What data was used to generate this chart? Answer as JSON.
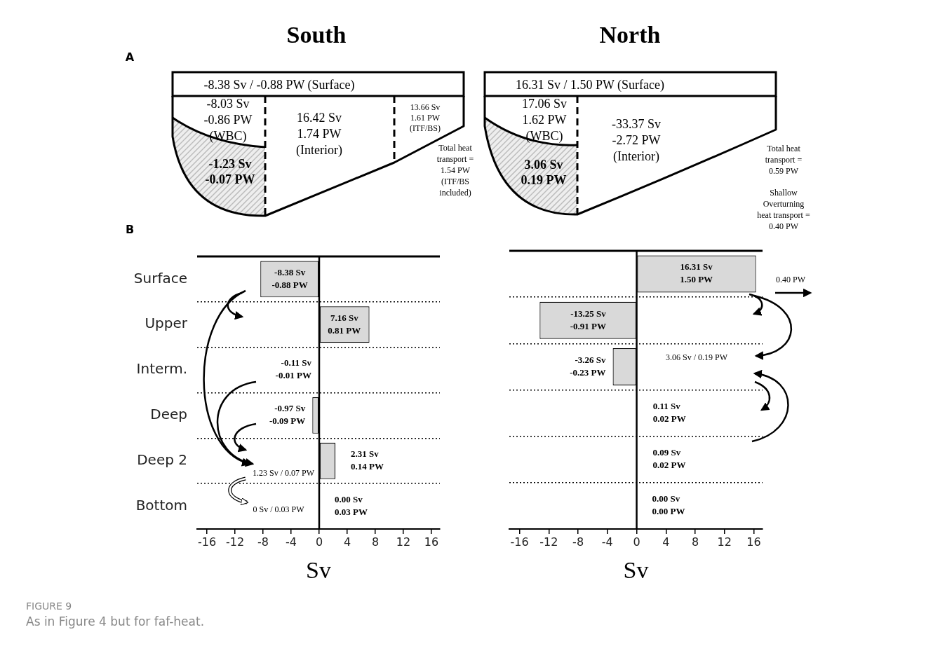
{
  "chart_data": [
    {
      "type": "other",
      "title": "South",
      "annotations": [
        "A",
        "-8.38 Sv / -0.88 PW (Surface)",
        "-8.03 Sv\n-0.86 PW\n(WBC)",
        "16.42 Sv\n1.74 PW\n(Interior)",
        "13.66 Sv\n1.61 PW\n(ITF/BS)",
        "-1.23 Sv\n-0.07 PW",
        "Total heat\ntransport =\n1.54 PW\n(ITF/BS\nincluded)"
      ]
    },
    {
      "type": "other",
      "title": "North",
      "annotations": [
        "16.31 Sv / 1.50 PW (Surface)",
        "17.06 Sv\n1.62 PW\n(WBC)",
        "-33.37 Sv\n-2.72 PW\n(Interior)",
        "3.06 Sv\n0.19 PW",
        "Total heat\ntransport =\n0.59 PW",
        "Shallow\nOverturning\nheat transport =\n0.40 PW"
      ]
    },
    {
      "type": "bar",
      "orientation": "horizontal",
      "categories": [
        "Surface",
        "Upper",
        "Interm.",
        "Deep",
        "Deep 2",
        "Bottom"
      ],
      "values": [
        -8.38,
        7.16,
        -0.11,
        -0.97,
        2.31,
        0.0
      ],
      "color": "#d9d9d9",
      "value_labels": [
        "-8.38 Sv\n-0.88 PW",
        "7.16 Sv\n0.81 PW",
        "-0.11 Sv\n-0.01 PW",
        "-0.97 Sv\n-0.09 PW",
        "2.31 Sv\n0.14 PW",
        "0.00 Sv\n0.03 PW"
      ],
      "xlabel": "Sv",
      "xlim": [
        -17.4,
        17.2
      ],
      "xticks": [
        -16,
        -12,
        -8,
        -4,
        0,
        4,
        8,
        12,
        16
      ],
      "grid": "y",
      "ref_lines": [
        {
          "axis": "x",
          "value": 0
        }
      ],
      "annotations": [
        "B",
        "1.23 Sv / 0.07 PW",
        "0 Sv / 0.03 PW",
        "FIGURE 9",
        "As in Figure 4 but for faf-heat."
      ]
    },
    {
      "type": "bar",
      "orientation": "horizontal",
      "categories": [
        null,
        null,
        null,
        null,
        null,
        null
      ],
      "values": [
        16.31,
        -13.25,
        -3.26,
        0.11,
        0.09,
        0.0
      ],
      "color": "#d9d9d9",
      "value_labels": [
        "16.31 Sv\n1.50 PW",
        "-13.25 Sv\n-0.91 PW",
        "-3.26 Sv\n-0.23 PW",
        "0.11 Sv\n0.02 PW",
        "0.09 Sv\n0.02 PW",
        "0.00 Sv\n0.00 PW"
      ],
      "xlabel": "Sv",
      "xlim": [
        -17.4,
        17.2
      ],
      "xticks": [
        -16,
        -12,
        -8,
        -4,
        0,
        4,
        8,
        12,
        16
      ],
      "grid": "y",
      "ref_lines": [
        {
          "axis": "x",
          "value": 0
        }
      ],
      "tick_labels": "x",
      "annotations": [
        "0.40 PW",
        "3.06 Sv / 0.19 PW"
      ]
    }
  ]
}
